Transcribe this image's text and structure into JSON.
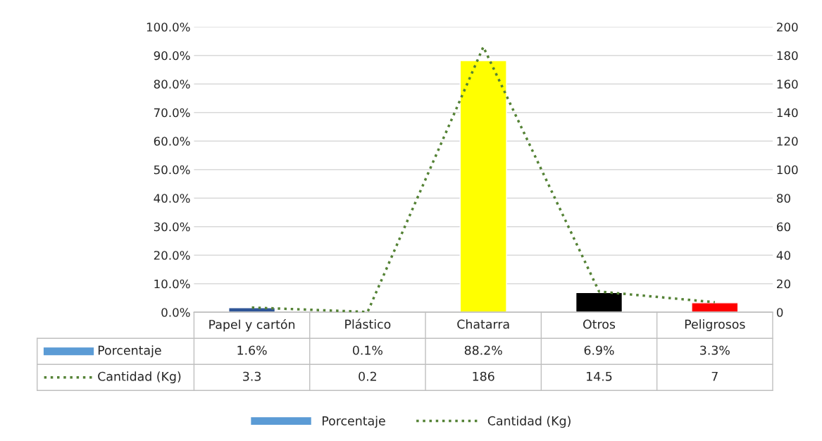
{
  "chart_data": {
    "type": "bar",
    "categories": [
      "Papel y cartón",
      "Plástico",
      "Chatarra",
      "Otros",
      "Peligrosos"
    ],
    "series": [
      {
        "name": "Porcentaje",
        "color": "#5b9bd5",
        "colors": [
          "#2f5597",
          "#5b9bd5",
          "#ffff00",
          "#000000",
          "#ff0000"
        ],
        "values": [
          1.6,
          0.1,
          88.2,
          6.9,
          3.3
        ],
        "value_labels": [
          "1.6%",
          "0.1%",
          "88.2%",
          "6.9%",
          "3.3%"
        ]
      },
      {
        "name": "Cantidad (Kg)",
        "type": "line",
        "axis": "y2",
        "color": "#548235",
        "line_style": "dotted",
        "values": [
          3.3,
          0.2,
          186,
          14.5,
          7
        ],
        "value_labels": [
          "3.3",
          "0.2",
          "186",
          "14.5",
          "7"
        ]
      }
    ],
    "ylim": [
      0,
      100
    ],
    "yticks": [
      {
        "value": 0,
        "label": "0.0%"
      },
      {
        "value": 10,
        "label": "10.0%"
      },
      {
        "value": 20,
        "label": "20.0%"
      },
      {
        "value": 30,
        "label": "30.0%"
      },
      {
        "value": 40,
        "label": "40.0%"
      },
      {
        "value": 50,
        "label": "50.0%"
      },
      {
        "value": 60,
        "label": "60.0%"
      },
      {
        "value": 70,
        "label": "70.0%"
      },
      {
        "value": 80,
        "label": "80.0%"
      },
      {
        "value": 90,
        "label": "90.0%"
      },
      {
        "value": 100,
        "label": "100.0%"
      }
    ],
    "y2lim": [
      0,
      200
    ],
    "y2ticks": [
      0,
      20,
      40,
      60,
      80,
      100,
      120,
      140,
      160,
      180,
      200
    ],
    "grid": "y",
    "legend": "bottom"
  }
}
